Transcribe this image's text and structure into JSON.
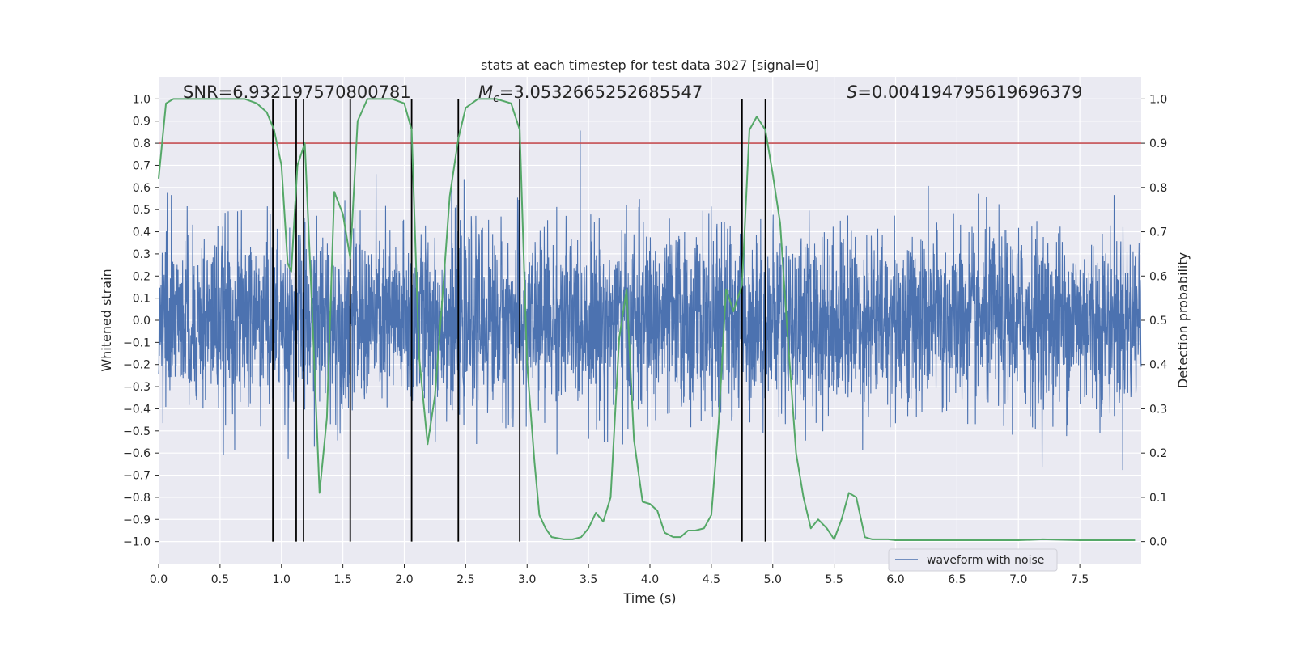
{
  "chart_data": {
    "type": "line",
    "title": "stats at each timestep for test data 3027 [signal=0]",
    "xlabel": "Time (s)",
    "ylabel": "Whitened strain",
    "y2label": "Detection probability",
    "xlim": [
      0,
      8
    ],
    "ylim": [
      -1.1,
      1.1
    ],
    "y2lim": [
      -0.05,
      1.05
    ],
    "xticks": [
      0.0,
      0.5,
      1.0,
      1.5,
      2.0,
      2.5,
      3.0,
      3.5,
      4.0,
      4.5,
      5.0,
      5.5,
      6.0,
      6.5,
      7.0,
      7.5
    ],
    "yticks": [
      -1.0,
      -0.9,
      -0.8,
      -0.7,
      -0.6,
      -0.5,
      -0.4,
      -0.3,
      -0.2,
      -0.1,
      0.0,
      0.1,
      0.2,
      0.3,
      0.4,
      0.5,
      0.6,
      0.7,
      0.8,
      0.9,
      1.0
    ],
    "y2ticks": [
      0.0,
      0.1,
      0.2,
      0.3,
      0.4,
      0.5,
      0.6,
      0.7,
      0.8,
      0.9,
      1.0
    ],
    "grid": true,
    "legend_position": "bottom-right",
    "annotations": {
      "snr": "SNR=6.932197570800781",
      "mc_symbol": "M",
      "mc_sub": "c",
      "mc_value": "=3.0532665252685547",
      "s_symbol": "S",
      "s_value": "=0.004194795619696379"
    },
    "series": [
      {
        "name": "waveform with noise",
        "axis": "left",
        "color": "#4c72b0",
        "kind": "noise",
        "dense_range": [
          -0.38,
          0.38
        ],
        "tail_range": [
          -0.82,
          1.0
        ],
        "samples": 4096
      },
      {
        "axis": "right",
        "color": "#55a868",
        "x": [
          0.0,
          0.06,
          0.12,
          0.2,
          0.3,
          0.5,
          0.7,
          0.8,
          0.88,
          0.94,
          1.0,
          1.05,
          1.08,
          1.13,
          1.19,
          1.25,
          1.31,
          1.37,
          1.43,
          1.5,
          1.56,
          1.62,
          1.7,
          1.8,
          1.9,
          2.0,
          2.06,
          2.12,
          2.19,
          2.25,
          2.31,
          2.37,
          2.44,
          2.5,
          2.6,
          2.75,
          2.87,
          2.94,
          3.0,
          3.06,
          3.1,
          3.15,
          3.2,
          3.3,
          3.37,
          3.44,
          3.5,
          3.56,
          3.62,
          3.68,
          3.75,
          3.81,
          3.87,
          3.94,
          4.0,
          4.06,
          4.12,
          4.19,
          4.25,
          4.31,
          4.37,
          4.44,
          4.5,
          4.56,
          4.62,
          4.68,
          4.75,
          4.81,
          4.87,
          4.94,
          5.0,
          5.06,
          5.12,
          5.19,
          5.25,
          5.31,
          5.37,
          5.44,
          5.5,
          5.56,
          5.62,
          5.68,
          5.75,
          5.81,
          5.87,
          5.94,
          6.0,
          6.2,
          6.5,
          6.8,
          7.0,
          7.2,
          7.5,
          7.8,
          7.95
        ],
        "values": [
          0.82,
          0.99,
          1.0,
          1.0,
          1.0,
          1.0,
          1.0,
          0.99,
          0.97,
          0.93,
          0.85,
          0.63,
          0.61,
          0.85,
          0.9,
          0.52,
          0.11,
          0.28,
          0.79,
          0.74,
          0.64,
          0.95,
          1.0,
          1.0,
          1.0,
          0.99,
          0.93,
          0.42,
          0.22,
          0.33,
          0.55,
          0.78,
          0.91,
          0.98,
          1.0,
          1.0,
          0.99,
          0.93,
          0.4,
          0.18,
          0.06,
          0.03,
          0.01,
          0.005,
          0.005,
          0.01,
          0.03,
          0.065,
          0.045,
          0.1,
          0.46,
          0.57,
          0.23,
          0.09,
          0.085,
          0.07,
          0.02,
          0.01,
          0.01,
          0.025,
          0.025,
          0.03,
          0.06,
          0.27,
          0.57,
          0.52,
          0.58,
          0.93,
          0.96,
          0.93,
          0.83,
          0.72,
          0.47,
          0.2,
          0.1,
          0.03,
          0.05,
          0.03,
          0.005,
          0.05,
          0.11,
          0.1,
          0.01,
          0.005,
          0.005,
          0.005,
          0.003,
          0.003,
          0.003,
          0.003,
          0.003,
          0.005,
          0.003,
          0.003,
          0.003
        ]
      }
    ],
    "threshold": {
      "y2": 0.9,
      "color": "#c44e52"
    },
    "vlines": {
      "x": [
        0.93,
        1.12,
        1.18,
        1.56,
        2.06,
        2.44,
        2.94,
        4.75,
        4.94
      ],
      "y2_range": [
        0.0,
        1.0
      ],
      "color": "#000000"
    }
  }
}
